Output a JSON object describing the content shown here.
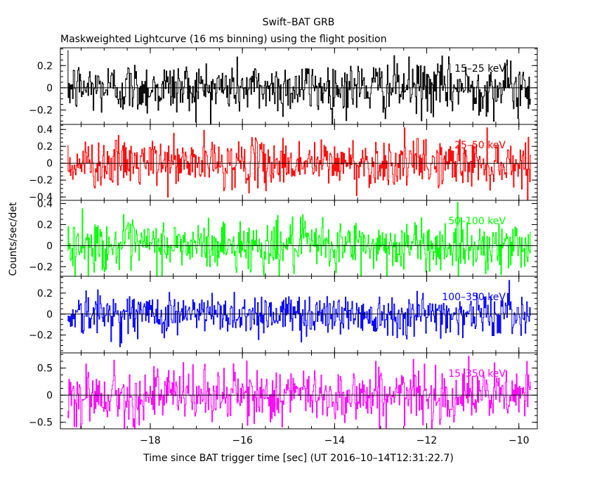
{
  "figure": {
    "title": "Swift–BAT GRB",
    "subtitle": "Maskweighted Lightcurve (16 ms binning) using the flight position",
    "xlabel": "Time since BAT trigger time [sec] (UT 2016–10–14T12:31:22.7)",
    "ylabel": "Counts/sec/det"
  },
  "chart_data": {
    "type": "line",
    "title": "Swift–BAT GRB",
    "subtitle": "Maskweighted Lightcurve (16 ms binning) using the flight position",
    "xlabel": "Time since BAT trigger time [sec] (UT 2016–10–14T12:31:22.7)",
    "ylabel": "Counts/sec/det",
    "xlim": [
      -19.95,
      -9.6
    ],
    "x_start": -19.8,
    "x_end": -9.75,
    "bin_width": 0.016,
    "xticks": [
      -18,
      -16,
      -14,
      -12,
      -10
    ],
    "xtick_labels": [
      "−18",
      "−16",
      "−14",
      "−12",
      "−10"
    ],
    "grid": false,
    "zero_line": true,
    "panels": [
      {
        "name": "15–25 keV",
        "color": "#000000",
        "ylim": [
          -0.33,
          0.36
        ],
        "noise_sigma": 0.12,
        "yticks": [
          -0.2,
          0,
          0.2
        ],
        "ytick_labels": [
          "−0.2",
          "0",
          "0.2"
        ]
      },
      {
        "name": "25–50 keV",
        "color": "#ff0000",
        "ylim": [
          -0.44,
          0.46
        ],
        "noise_sigma": 0.14,
        "yticks": [
          -0.4,
          -0.2,
          0,
          0.2,
          0.4
        ],
        "ytick_labels": [
          "−0.4",
          "−0.2",
          "0",
          "0.2",
          "0.4"
        ]
      },
      {
        "name": "50–100 keV",
        "color": "#00ff00",
        "ylim": [
          -0.29,
          0.43
        ],
        "noise_sigma": 0.12,
        "yticks": [
          -0.2,
          0,
          0.2,
          0.4
        ],
        "ytick_labels": [
          "−0.2",
          "0",
          "0.2",
          "0.4"
        ]
      },
      {
        "name": "100–350 keV",
        "color": "#0000ff",
        "ylim": [
          -0.37,
          0.36
        ],
        "noise_sigma": 0.1,
        "yticks": [
          -0.2,
          0,
          0.2
        ],
        "ytick_labels": [
          "−0.2",
          "0",
          "0.2"
        ]
      },
      {
        "name": "15–350 keV",
        "color": "#ff00ff",
        "ylim": [
          -0.62,
          0.78
        ],
        "noise_sigma": 0.25,
        "yticks": [
          -0.5,
          0,
          0.5
        ],
        "ytick_labels": [
          "−0.5",
          "0",
          "0.5"
        ]
      }
    ]
  }
}
